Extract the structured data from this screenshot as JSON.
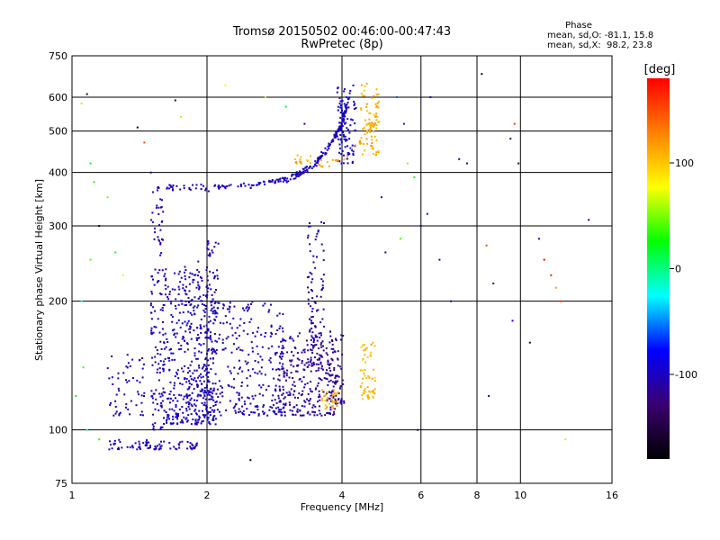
{
  "chart_data": {
    "type": "scatter",
    "title": "Tromsø 20150502 00:46:00-00:47:43",
    "subtitle": "RwPretec (8p)",
    "xlabel": "Frequency [MHz]",
    "ylabel": "Stationary phase Virtual Height [km]",
    "x_scale": "log",
    "y_scale": "log",
    "xlim": [
      1,
      16
    ],
    "ylim": [
      75,
      750
    ],
    "x_ticks": [
      1,
      2,
      4,
      6,
      8,
      10,
      16
    ],
    "x_tick_labels": [
      "1",
      "2",
      "4",
      "6",
      "8",
      "10",
      "16"
    ],
    "y_ticks": [
      75,
      100,
      200,
      300,
      400,
      500,
      600,
      750
    ],
    "y_tick_labels": [
      "75",
      "100",
      "200",
      "300",
      "400",
      "500",
      "600",
      "750"
    ],
    "x_gridlines": [
      1,
      2,
      4,
      6,
      8,
      10,
      16
    ],
    "y_gridlines": [
      100,
      200,
      300,
      400,
      500,
      600,
      750
    ],
    "grid": true,
    "stats": {
      "heading": "Phase",
      "line_o": "mean, sd,O: -81.1, 15.8",
      "line_x": "mean, sd,X:  98.2, 23.8"
    },
    "colorbar": {
      "label": "[deg]",
      "range": [
        -180,
        180
      ],
      "ticks": [
        100,
        0,
        -100
      ],
      "tick_labels": [
        "100",
        "0",
        "-100"
      ],
      "colormap": [
        "#000000",
        "#3a0070",
        "#0000ff",
        "#00ffff",
        "#00ff00",
        "#ffff00",
        "#ff8000",
        "#ff0000"
      ]
    },
    "series": [
      {
        "description": "O-mode trace (blue, phase ≈ -100 deg)",
        "clusters": [
          {
            "f": [
              1.6,
              2.1
            ],
            "h": [
              103,
              240
            ],
            "count": 420,
            "phase": -95
          },
          {
            "f": [
              2.1,
              3.0
            ],
            "h": [
              108,
              200
            ],
            "count": 260,
            "phase": -100
          },
          {
            "f": [
              2.9,
              3.9
            ],
            "h": [
              108,
              170
            ],
            "count": 230,
            "phase": -110
          },
          {
            "f": [
              1.2,
              1.45
            ],
            "h": [
              108,
              150
            ],
            "count": 55,
            "phase": -100
          },
          {
            "f": [
              1.5,
              1.6
            ],
            "h": [
              100,
              370
            ],
            "count": 120,
            "phase": -100
          },
          {
            "f": [
              1.96,
              2.12
            ],
            "h": [
              110,
              280
            ],
            "count": 90,
            "phase": -100
          },
          {
            "f": [
              1.78,
              1.95
            ],
            "h": [
              120,
              250
            ],
            "count": 50,
            "phase": -100
          },
          {
            "f": [
              3.35,
              3.65
            ],
            "h": [
              140,
              310
            ],
            "count": 110,
            "phase": -110
          },
          {
            "f": [
              3.7,
              4.05
            ],
            "h": [
              115,
              170
            ],
            "count": 70,
            "phase": -115
          },
          {
            "f": [
              3.9,
              4.3
            ],
            "h": [
              420,
              640
            ],
            "count": 90,
            "phase": -90
          },
          {
            "f": [
              1.2,
              1.5
            ],
            "h": [
              90,
              95
            ],
            "count": 35,
            "phase": -100
          },
          {
            "f": [
              1.45,
              1.9
            ],
            "h": [
              90,
              94
            ],
            "count": 45,
            "phase": -100
          }
        ],
        "curve": {
          "points": [
            [
              1.55,
              370
            ],
            [
              2.0,
              368
            ],
            [
              2.6,
              375
            ],
            [
              3.1,
              390
            ],
            [
              3.5,
              420
            ],
            [
              3.8,
              470
            ],
            [
              4.0,
              520
            ],
            [
              4.15,
              600
            ]
          ],
          "count": 260,
          "phase": -98
        }
      },
      {
        "description": "X-mode trace (orange/yellow, phase ≈ 100 deg)",
        "clusters": [
          {
            "f": [
              3.6,
              3.95
            ],
            "h": [
              112,
              125
            ],
            "count": 35,
            "phase": 110
          },
          {
            "f": [
              4.4,
              4.75
            ],
            "h": [
              118,
              160
            ],
            "count": 60,
            "phase": 105
          },
          {
            "f": [
              4.4,
              4.85
            ],
            "h": [
              440,
              650
            ],
            "count": 70,
            "phase": 110
          },
          {
            "f": [
              3.1,
              3.45
            ],
            "h": [
              420,
              440
            ],
            "count": 15,
            "phase": 110
          }
        ],
        "curve": {
          "points": [
            [
              3.5,
              415
            ],
            [
              4.0,
              430
            ],
            [
              4.4,
              470
            ],
            [
              4.7,
              520
            ],
            [
              4.85,
              600
            ]
          ],
          "count": 40,
          "phase": 112
        }
      },
      {
        "description": "Scattered noise points",
        "points": [
          [
            1.05,
            580,
            60
          ],
          [
            1.08,
            610,
            -150
          ],
          [
            1.1,
            420,
            20
          ],
          [
            1.12,
            380,
            30
          ],
          [
            1.1,
            250,
            40
          ],
          [
            1.15,
            300,
            -160
          ],
          [
            1.2,
            350,
            50
          ],
          [
            1.25,
            260,
            10
          ],
          [
            1.3,
            230,
            70
          ],
          [
            1.05,
            200,
            -10
          ],
          [
            1.08,
            100,
            -20
          ],
          [
            1.15,
            95,
            30
          ],
          [
            1.4,
            510,
            -170
          ],
          [
            1.45,
            470,
            150
          ],
          [
            1.5,
            400,
            -100
          ],
          [
            1.7,
            590,
            -150
          ],
          [
            1.75,
            540,
            60
          ],
          [
            2.2,
            640,
            80
          ],
          [
            2.5,
            85,
            -160
          ],
          [
            2.7,
            600,
            90
          ],
          [
            3.0,
            570,
            20
          ],
          [
            3.3,
            520,
            -100
          ],
          [
            5.3,
            600,
            -60
          ],
          [
            5.5,
            520,
            -100
          ],
          [
            5.6,
            420,
            100
          ],
          [
            5.8,
            390,
            30
          ],
          [
            6.0,
            300,
            -120
          ],
          [
            6.2,
            320,
            -100
          ],
          [
            6.6,
            250,
            -90
          ],
          [
            7.0,
            200,
            -110
          ],
          [
            7.6,
            420,
            -110
          ],
          [
            8.2,
            680,
            -170
          ],
          [
            8.4,
            270,
            150
          ],
          [
            8.5,
            120,
            -110
          ],
          [
            8.7,
            220,
            -130
          ],
          [
            9.5,
            480,
            -120
          ],
          [
            9.7,
            520,
            160
          ],
          [
            9.9,
            420,
            -140
          ],
          [
            10.5,
            160,
            -150
          ],
          [
            11.0,
            280,
            -90
          ],
          [
            11.3,
            250,
            180
          ],
          [
            11.7,
            230,
            170
          ],
          [
            12.0,
            215,
            120
          ],
          [
            12.3,
            200,
            160
          ],
          [
            12.6,
            95,
            90
          ],
          [
            14.2,
            310,
            -80
          ],
          [
            9.6,
            180,
            -80
          ],
          [
            5.9,
            100,
            -140
          ],
          [
            6.3,
            600,
            -100
          ],
          [
            7.3,
            430,
            -120
          ],
          [
            5.4,
            280,
            40
          ],
          [
            4.9,
            350,
            -100
          ],
          [
            5.0,
            260,
            -100
          ],
          [
            1.02,
            120,
            20
          ],
          [
            1.06,
            140,
            40
          ]
        ]
      }
    ]
  }
}
